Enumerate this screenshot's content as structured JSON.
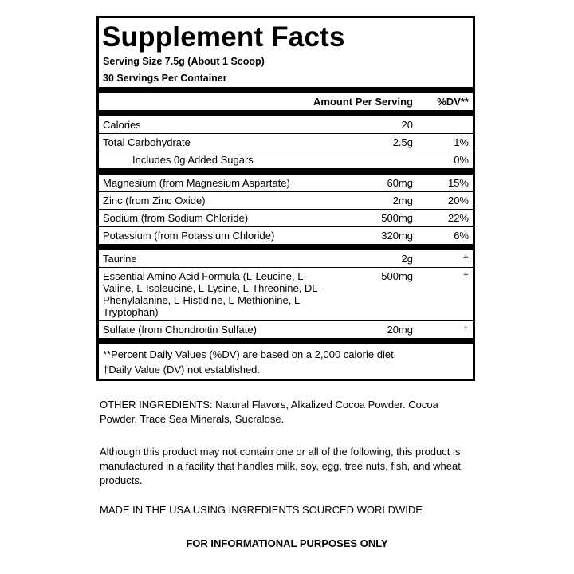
{
  "title": "Supplement Facts",
  "serving_size": "Serving Size 7.5g (About 1 Scoop)",
  "servings_per_container": "30 Servings Per Container",
  "header": {
    "amount": "Amount Per Serving",
    "dv": "%DV**"
  },
  "groups": [
    [
      {
        "name": "Calories",
        "amount": "20",
        "dv": ""
      },
      {
        "name": "Total Carbohydrate",
        "amount": "2.5g",
        "dv": "1%"
      },
      {
        "name": "Includes 0g Added Sugars",
        "amount": "",
        "dv": "0%",
        "indent": true
      }
    ],
    [
      {
        "name": "Magnesium (from Magnesium Aspartate)",
        "amount": "60mg",
        "dv": "15%"
      },
      {
        "name": "Zinc (from Zinc Oxide)",
        "amount": "2mg",
        "dv": "20%"
      },
      {
        "name": "Sodium (from Sodium Chloride)",
        "amount": "500mg",
        "dv": "22%"
      },
      {
        "name": "Potassium (from Potassium Chloride)",
        "amount": "320mg",
        "dv": "6%"
      }
    ],
    [
      {
        "name": "Taurine",
        "amount": "2g",
        "dv": "†"
      },
      {
        "name": "Essential Amino Acid Formula (L-Leucine, L-Valine, L-Isoleucine, L-Lysine, L-Threonine, DL-Phenylalanine, L-Histidine, L-Methionine, L-Tryptophan)",
        "amount": "500mg",
        "dv": "†"
      },
      {
        "name": "Sulfate (from Chondroitin Sulfate)",
        "amount": "20mg",
        "dv": "†"
      }
    ]
  ],
  "footnotes": [
    "**Percent Daily Values (%DV) are based on a 2,000 calorie diet.",
    "†Daily Value (DV) not established."
  ],
  "other_ingredients": "OTHER INGREDIENTS: Natural Flavors, Alkalized Cocoa Powder. Cocoa Powder, Trace Sea Minerals, Sucralose.",
  "allergen_notice": "Although this product may not contain one or all of the following, this product is manufactured in a facility that handles milk, soy, egg, tree nuts, fish, and wheat products.",
  "origin": "MADE IN THE USA USING INGREDIENTS SOURCED WORLDWIDE",
  "disclaimer": "FOR INFORMATIONAL PURPOSES ONLY"
}
